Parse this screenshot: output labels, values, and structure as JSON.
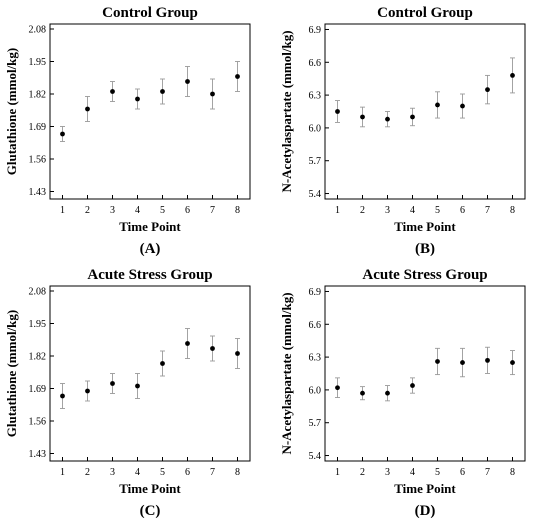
{
  "chart_data": [
    {
      "panel_label": "(A)",
      "type": "scatter",
      "title": "Control Group",
      "xlabel": "Time Point",
      "ylabel": "Glutathione (mmol/kg)",
      "x": [
        1,
        2,
        3,
        4,
        5,
        6,
        7,
        8
      ],
      "xlim": [
        0.5,
        8.5
      ],
      "ylim": [
        1.4,
        2.1
      ],
      "yticks": [
        "1.43",
        "1.56",
        "1.69",
        "1.82",
        "1.95",
        "2.08"
      ],
      "grid": false,
      "series": [
        {
          "values": [
            1.66,
            1.76,
            1.83,
            1.8,
            1.83,
            1.87,
            1.82,
            1.89
          ],
          "error": [
            0.03,
            0.05,
            0.04,
            0.04,
            0.05,
            0.06,
            0.06,
            0.06
          ]
        }
      ]
    },
    {
      "panel_label": "(B)",
      "type": "scatter",
      "title": "Control Group",
      "xlabel": "Time Point",
      "ylabel": "N-Acetylaspartate (mmol/kg)",
      "x": [
        1,
        2,
        3,
        4,
        5,
        6,
        7,
        8
      ],
      "xlim": [
        0.5,
        8.5
      ],
      "ylim": [
        5.35,
        6.95
      ],
      "yticks": [
        "5.4",
        "5.7",
        "6.0",
        "6.3",
        "6.6",
        "6.9"
      ],
      "grid": false,
      "series": [
        {
          "values": [
            6.15,
            6.1,
            6.08,
            6.1,
            6.21,
            6.2,
            6.35,
            6.48
          ],
          "error": [
            0.1,
            0.09,
            0.07,
            0.08,
            0.12,
            0.11,
            0.13,
            0.16
          ]
        }
      ]
    },
    {
      "panel_label": "(C)",
      "type": "scatter",
      "title": "Acute Stress Group",
      "xlabel": "Time Point",
      "ylabel": "Glutathione (mmol/kg)",
      "x": [
        1,
        2,
        3,
        4,
        5,
        6,
        7,
        8
      ],
      "xlim": [
        0.5,
        8.5
      ],
      "ylim": [
        1.4,
        2.1
      ],
      "yticks": [
        "1.43",
        "1.56",
        "1.69",
        "1.82",
        "1.95",
        "2.08"
      ],
      "grid": false,
      "series": [
        {
          "values": [
            1.66,
            1.68,
            1.71,
            1.7,
            1.79,
            1.87,
            1.85,
            1.83
          ],
          "error": [
            0.05,
            0.04,
            0.04,
            0.05,
            0.05,
            0.06,
            0.05,
            0.06
          ]
        }
      ]
    },
    {
      "panel_label": "(D)",
      "type": "scatter",
      "title": "Acute Stress Group",
      "xlabel": "Time Point",
      "ylabel": "N-Acetylaspartate (mmol/kg)",
      "x": [
        1,
        2,
        3,
        4,
        5,
        6,
        7,
        8
      ],
      "xlim": [
        0.5,
        8.5
      ],
      "ylim": [
        5.35,
        6.95
      ],
      "yticks": [
        "5.4",
        "5.7",
        "6.0",
        "6.3",
        "6.6",
        "6.9"
      ],
      "grid": false,
      "series": [
        {
          "values": [
            6.02,
            5.97,
            5.97,
            6.04,
            6.26,
            6.25,
            6.27,
            6.25
          ],
          "error": [
            0.09,
            0.06,
            0.07,
            0.07,
            0.12,
            0.13,
            0.12,
            0.11
          ]
        }
      ]
    }
  ]
}
